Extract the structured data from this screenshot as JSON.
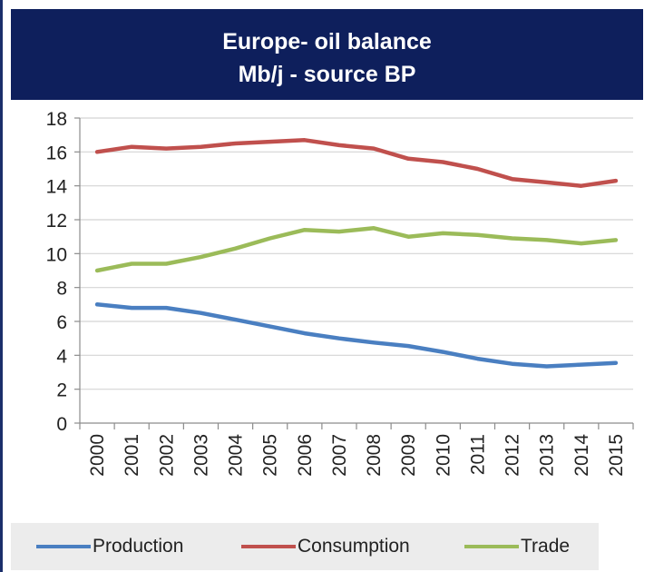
{
  "chart_data": {
    "type": "line",
    "title": "Europe- oil balance",
    "subtitle": "Mb/j - source BP",
    "xlabel": "",
    "ylabel": "",
    "ylim": [
      0,
      18
    ],
    "yticks": [
      "0",
      "2",
      "4",
      "6",
      "8",
      "10",
      "12",
      "14",
      "16",
      "18"
    ],
    "categories": [
      "2000",
      "2001",
      "2002",
      "2003",
      "2004",
      "2005",
      "2006",
      "2007",
      "2008",
      "2009",
      "2010",
      "2011",
      "2012",
      "2013",
      "2014",
      "2015"
    ],
    "grid": true,
    "legend_position": "bottom",
    "series": [
      {
        "name": "Production",
        "color": "#4a7fc1",
        "values": [
          7.0,
          6.8,
          6.8,
          6.5,
          6.1,
          5.7,
          5.3,
          5.0,
          4.75,
          4.55,
          4.2,
          3.8,
          3.5,
          3.35,
          3.45,
          3.55
        ]
      },
      {
        "name": "Consumption",
        "color": "#c0504d",
        "values": [
          16.0,
          16.3,
          16.2,
          16.3,
          16.5,
          16.6,
          16.7,
          16.4,
          16.2,
          15.6,
          15.4,
          15.0,
          14.4,
          14.2,
          14.0,
          14.3
        ]
      },
      {
        "name": "Trade",
        "color": "#9bbb59",
        "values": [
          9.0,
          9.4,
          9.4,
          9.8,
          10.3,
          10.9,
          11.4,
          11.3,
          11.5,
          11.0,
          11.2,
          11.1,
          10.9,
          10.8,
          10.6,
          10.8
        ]
      }
    ]
  }
}
